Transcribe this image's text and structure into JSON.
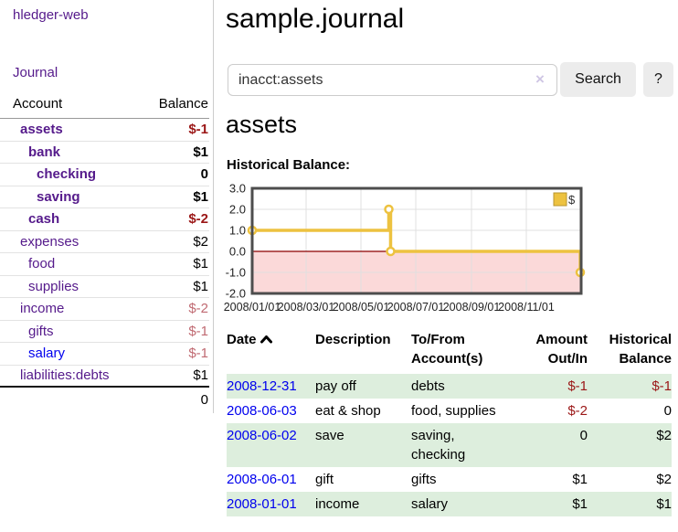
{
  "brand": "hledger-web",
  "nav": {
    "journal": "Journal"
  },
  "sidebar": {
    "header": {
      "account": "Account",
      "balance": "Balance"
    },
    "accounts": [
      {
        "name": "assets",
        "balance": "$-1"
      },
      {
        "name": "bank",
        "balance": "$1"
      },
      {
        "name": "checking",
        "balance": "0"
      },
      {
        "name": "saving",
        "balance": "$1"
      },
      {
        "name": "cash",
        "balance": "$-2"
      },
      {
        "name": "expenses",
        "balance": "$2"
      },
      {
        "name": "food",
        "balance": "$1"
      },
      {
        "name": "supplies",
        "balance": "$1"
      },
      {
        "name": "income",
        "balance": "$-2"
      },
      {
        "name": "gifts",
        "balance": "$-1"
      },
      {
        "name": "salary",
        "balance": "$-1"
      },
      {
        "name": "liabilities:debts",
        "balance": "$1"
      }
    ],
    "total": "0"
  },
  "main": {
    "title": "sample.journal",
    "search": {
      "value": "inacct:assets",
      "clear": "×",
      "button": "Search",
      "help": "?"
    },
    "heading": "assets",
    "chart_title": "Historical Balance:"
  },
  "chart_data": {
    "type": "line",
    "title": "Historical Balance:",
    "series": [
      {
        "name": "$",
        "step": true,
        "points": [
          [
            "2008-01-01",
            1
          ],
          [
            "2008-06-01",
            2
          ],
          [
            "2008-06-03",
            0
          ],
          [
            "2008-12-31",
            -1
          ]
        ]
      }
    ],
    "x_range": [
      "2008-01-01",
      "2009-01-01"
    ],
    "x_ticks": [
      "2008/01/01",
      "2008/03/01",
      "2008/05/01",
      "2008/07/01",
      "2008/09/01",
      "2008/11/01"
    ],
    "y_ticks": [
      3.0,
      2.0,
      1.0,
      0.0,
      -1.0,
      -2.0
    ],
    "ylim": [
      -2,
      3
    ],
    "grid": true,
    "legend_position": "top-right",
    "line_color": "#EDC240",
    "negative_region_color": "#fbd9d9",
    "zero_line_color": "#8b0000"
  },
  "register": {
    "headers": {
      "date": "Date",
      "description": "Description",
      "accounts_1": "To/From",
      "accounts_2": "Account(s)",
      "amount_1": "Amount",
      "amount_2": "Out/In",
      "balance_1": "Historical",
      "balance_2": "Balance"
    },
    "rows": [
      {
        "date": "2008-12-31",
        "description": "pay off",
        "accounts": "debts",
        "amount": "$-1",
        "balance": "$-1"
      },
      {
        "date": "2008-06-03",
        "description": "eat & shop",
        "accounts": "food, supplies",
        "amount": "$-2",
        "balance": "0"
      },
      {
        "date": "2008-06-02",
        "description": "save",
        "accounts": "saving, checking",
        "amount": "0",
        "balance": "$2"
      },
      {
        "date": "2008-06-01",
        "description": "gift",
        "accounts": "gifts",
        "amount": "$1",
        "balance": "$2"
      },
      {
        "date": "2008-01-01",
        "description": "income",
        "accounts": "salary",
        "amount": "$1",
        "balance": "$1"
      }
    ]
  }
}
